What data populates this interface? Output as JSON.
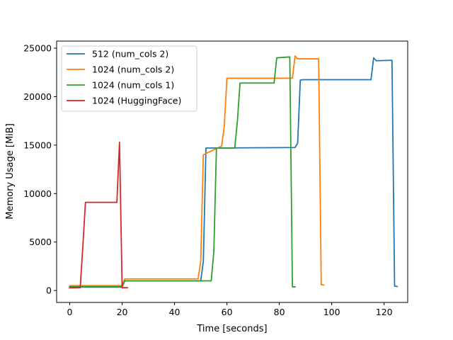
{
  "chart_data": {
    "type": "line",
    "title": "",
    "xlabel": "Time [seconds]",
    "ylabel": "Memory Usage [MiB]",
    "xlim": [
      -5,
      129
    ],
    "ylim": [
      -1230,
      25730
    ],
    "xticks": [
      0,
      20,
      40,
      60,
      80,
      100,
      120
    ],
    "yticks": [
      0,
      5000,
      10000,
      15000,
      20000,
      25000
    ],
    "grid": false,
    "legend_position": "upper-left",
    "series": [
      {
        "name": "512 (num_cols 2)",
        "color": "#1f77b4",
        "x": [
          0,
          20,
          21,
          50,
          51,
          52,
          86,
          87,
          88,
          89,
          115,
          116,
          117,
          123,
          124,
          125
        ],
        "y": [
          350,
          350,
          1000,
          1000,
          3000,
          14700,
          14750,
          15200,
          21700,
          21750,
          21750,
          24000,
          23700,
          23750,
          450,
          420
        ]
      },
      {
        "name": "1024 (num_cols 2)",
        "color": "#ff7f0e",
        "x": [
          0,
          20,
          21,
          49,
          50,
          51,
          58,
          59,
          60,
          85,
          86,
          87,
          95,
          96,
          97
        ],
        "y": [
          500,
          500,
          1200,
          1200,
          3000,
          14000,
          14900,
          17000,
          21900,
          21900,
          24200,
          23900,
          23900,
          600,
          560
        ]
      },
      {
        "name": "1024 (num_cols 1)",
        "color": "#2ca02c",
        "x": [
          0,
          20,
          21,
          54,
          55,
          56,
          63,
          64,
          65,
          78,
          79,
          84,
          85,
          86
        ],
        "y": [
          380,
          380,
          1000,
          1000,
          4000,
          14700,
          14700,
          17500,
          21400,
          21400,
          24000,
          24100,
          380,
          380
        ]
      },
      {
        "name": "1024 (HuggingFace)",
        "color": "#d62728",
        "x": [
          0,
          4,
          5,
          6,
          18,
          19,
          20,
          22
        ],
        "y": [
          280,
          300,
          4500,
          9100,
          9100,
          15300,
          290,
          290
        ]
      }
    ]
  }
}
